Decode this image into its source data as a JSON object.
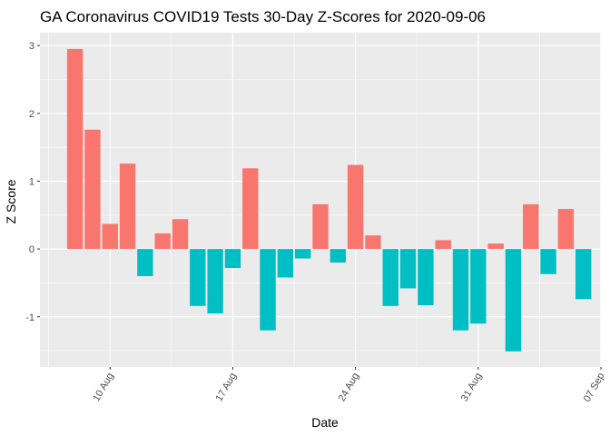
{
  "chart_data": {
    "type": "bar",
    "title": "GA Coronavirus COVID19 Tests 30-Day Z-Scores for 2020-09-06",
    "xlabel": "Date",
    "ylabel": "Z Score",
    "x": [
      "2020-08-08",
      "2020-08-09",
      "2020-08-10",
      "2020-08-11",
      "2020-08-12",
      "2020-08-13",
      "2020-08-14",
      "2020-08-15",
      "2020-08-16",
      "2020-08-17",
      "2020-08-18",
      "2020-08-19",
      "2020-08-20",
      "2020-08-21",
      "2020-08-22",
      "2020-08-23",
      "2020-08-24",
      "2020-08-25",
      "2020-08-26",
      "2020-08-27",
      "2020-08-28",
      "2020-08-29",
      "2020-08-30",
      "2020-08-31",
      "2020-09-01",
      "2020-09-02",
      "2020-09-03",
      "2020-09-04",
      "2020-09-05",
      "2020-09-06"
    ],
    "values": [
      2.95,
      1.76,
      0.37,
      1.26,
      -0.4,
      0.23,
      0.44,
      -0.84,
      -0.95,
      -0.28,
      1.19,
      -1.2,
      -0.42,
      -0.14,
      0.66,
      -0.2,
      1.24,
      0.2,
      -0.84,
      -0.58,
      -0.83,
      0.13,
      -1.2,
      -1.1,
      0.08,
      -1.51,
      0.66,
      -0.37,
      0.59,
      -0.74
    ],
    "x_ticks": [
      "10 Aug",
      "17 Aug",
      "24 Aug",
      "31 Aug",
      "07 Sep"
    ],
    "y_ticks": [
      "-1",
      "0",
      "1",
      "2",
      "3"
    ],
    "y_tick_values": [
      -1,
      0,
      1,
      2,
      3
    ],
    "ylim": [
      -1.74,
      3.19
    ],
    "xlim": [
      "2020-08-06",
      "2020-09-07"
    ],
    "grid": true,
    "colors": {
      "positive": "#F8766D",
      "negative": "#00BFC4",
      "panel": "#EBEBEB",
      "grid": "#FFFFFF",
      "tick": "#333333"
    }
  }
}
